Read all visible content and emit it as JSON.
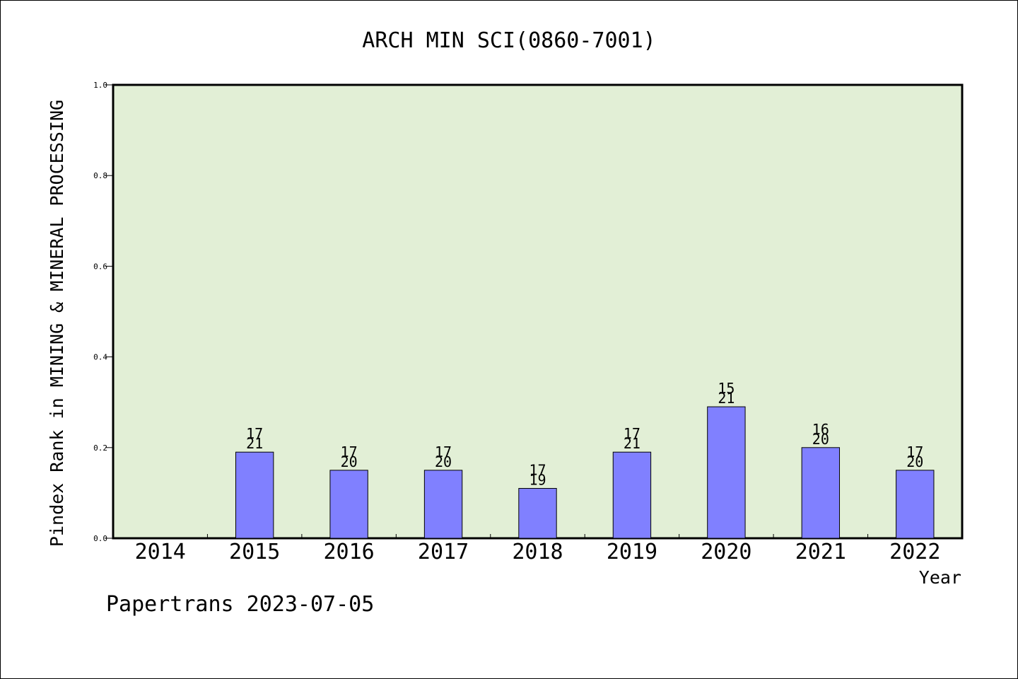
{
  "chart_data": {
    "type": "bar",
    "title": "ARCH MIN SCI(0860-7001)",
    "xlabel": "Year",
    "ylabel": "Pindex Rank in MINING & MINERAL PROCESSING",
    "ylim": [
      0,
      1.0
    ],
    "yticks": [
      "0.0",
      "0.2",
      "0.4",
      "0.6",
      "0.8",
      "1.0"
    ],
    "categories": [
      "2014",
      "2015",
      "2016",
      "2017",
      "2018",
      "2019",
      "2020",
      "2021",
      "2022"
    ],
    "values": [
      null,
      0.19,
      0.15,
      0.15,
      0.11,
      0.19,
      0.29,
      0.2,
      0.15
    ],
    "labels_top": [
      "",
      "17",
      "17",
      "17",
      "17",
      "17",
      "15",
      "16",
      "17"
    ],
    "labels_bottom": [
      "",
      "21",
      "20",
      "20",
      "19",
      "21",
      "21",
      "20",
      "20"
    ],
    "grid": false,
    "legend": "none",
    "colors": {
      "plot_background": "#e2efd6",
      "bar_fill": "#8080ff",
      "bar_stroke": "#000000"
    }
  },
  "footer": "Papertrans 2023-07-05"
}
